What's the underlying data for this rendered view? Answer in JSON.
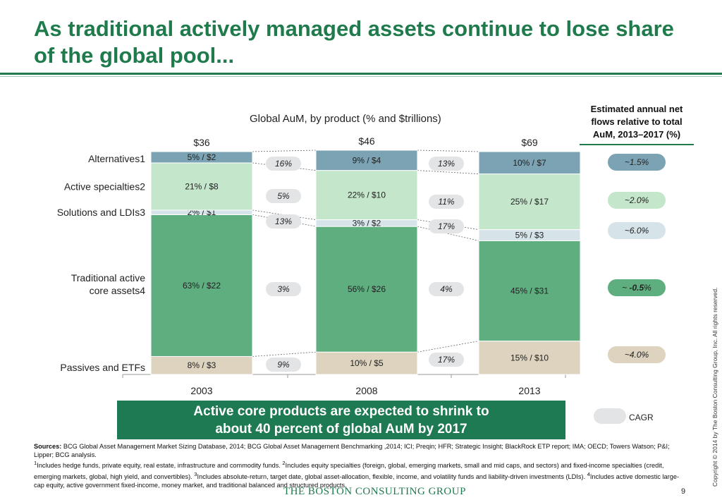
{
  "title": "As traditional actively managed assets continue to lose share of the global pool...",
  "chart_data": {
    "type": "bar",
    "stacked": true,
    "title": "Global AuM, by product (% and $trillions)",
    "categories": [
      "2003",
      "2008",
      "2013"
    ],
    "totals": [
      "$36",
      "$46",
      "$69"
    ],
    "series": [
      {
        "name": "Passives and ETFs",
        "share": [
          8,
          10,
          15
        ],
        "labels": [
          "8% / $3",
          "10% / $5",
          "15% / $10"
        ],
        "color": "#ddd3be"
      },
      {
        "name": "Traditional active core assets4",
        "share": [
          63,
          56,
          45
        ],
        "labels": [
          "63% / $22",
          "56% / $26",
          "45% / $31"
        ],
        "color": "#5eae80"
      },
      {
        "name": "Solutions and LDIs3",
        "share": [
          2,
          3,
          5
        ],
        "labels": [
          "2% / $1",
          "3% / $2",
          "5% / $3"
        ],
        "color": "#d6e4ea"
      },
      {
        "name": "Active specialties2",
        "share": [
          21,
          22,
          25
        ],
        "labels": [
          "21% / $8",
          "22% / $10",
          "25% / $17"
        ],
        "color": "#c4e6cb"
      },
      {
        "name": "Alternatives1",
        "share": [
          5,
          9,
          10
        ],
        "labels": [
          "5% / $2",
          "9% / $4",
          "10% / $7"
        ],
        "color": "#7ba3b3"
      }
    ],
    "cagr_2003_2008": [
      "9%",
      "3%",
      "13%",
      "5%",
      "16%"
    ],
    "cagr_2008_2013": [
      "17%",
      "4%",
      "17%",
      "11%",
      "13%"
    ],
    "flows_header": [
      "Estimated annual net",
      "flows relative to total",
      "AuM, 2013–2017 (%)"
    ],
    "flows": [
      {
        "label": "~4.0%",
        "color": "#ddd3be"
      },
      {
        "label_prefix": "~ ",
        "label_value": "-0.5",
        "label_suffix": "%",
        "color": "#5eae80"
      },
      {
        "label": "~6.0%",
        "color": "#d6e4ea"
      },
      {
        "label": "~2.0%",
        "color": "#c4e6cb"
      },
      {
        "label": "~1.5%",
        "color": "#7ba3b3"
      }
    ],
    "cagr_legend": "CAGR"
  },
  "callout": {
    "line1": "Active core products are expected to shrink to",
    "line2": "about 40 percent of global AuM by 2017"
  },
  "sources": {
    "label": "Sources:",
    "text": "BCG Global Asset Management Market Sizing Database, 2014; BCG Global Asset Management Benchmarking ,2014; ICI; Preqin; HFR; Strategic Insight; BlackRock ETP report; IMA; OECD; Towers Watson; P&I; Lipper; BCG analysis.",
    "fn1": "Includes hedge funds, private equity, real estate, infrastructure and commodity funds.",
    "fn2": "Includes equity specialties (foreign, global, emerging markets, small and mid caps, and sectors) and fixed-income specialties (credit, emerging markets, global, high yield, and convertibles).",
    "fn3": "Includes absolute-return, target date, global asset-allocation, flexible, income, and volatility funds and liability-driven investments (LDIs).",
    "fn4": "Includes active domestic large-cap equity, active government fixed-income, money market, and traditional balanced and structured products."
  },
  "logo": "THE BOSTON CONSULTING GROUP",
  "page_number": "9",
  "copyright": "Copyright © 2014 by The Boston Consulting Group, Inc. All rights reserved."
}
